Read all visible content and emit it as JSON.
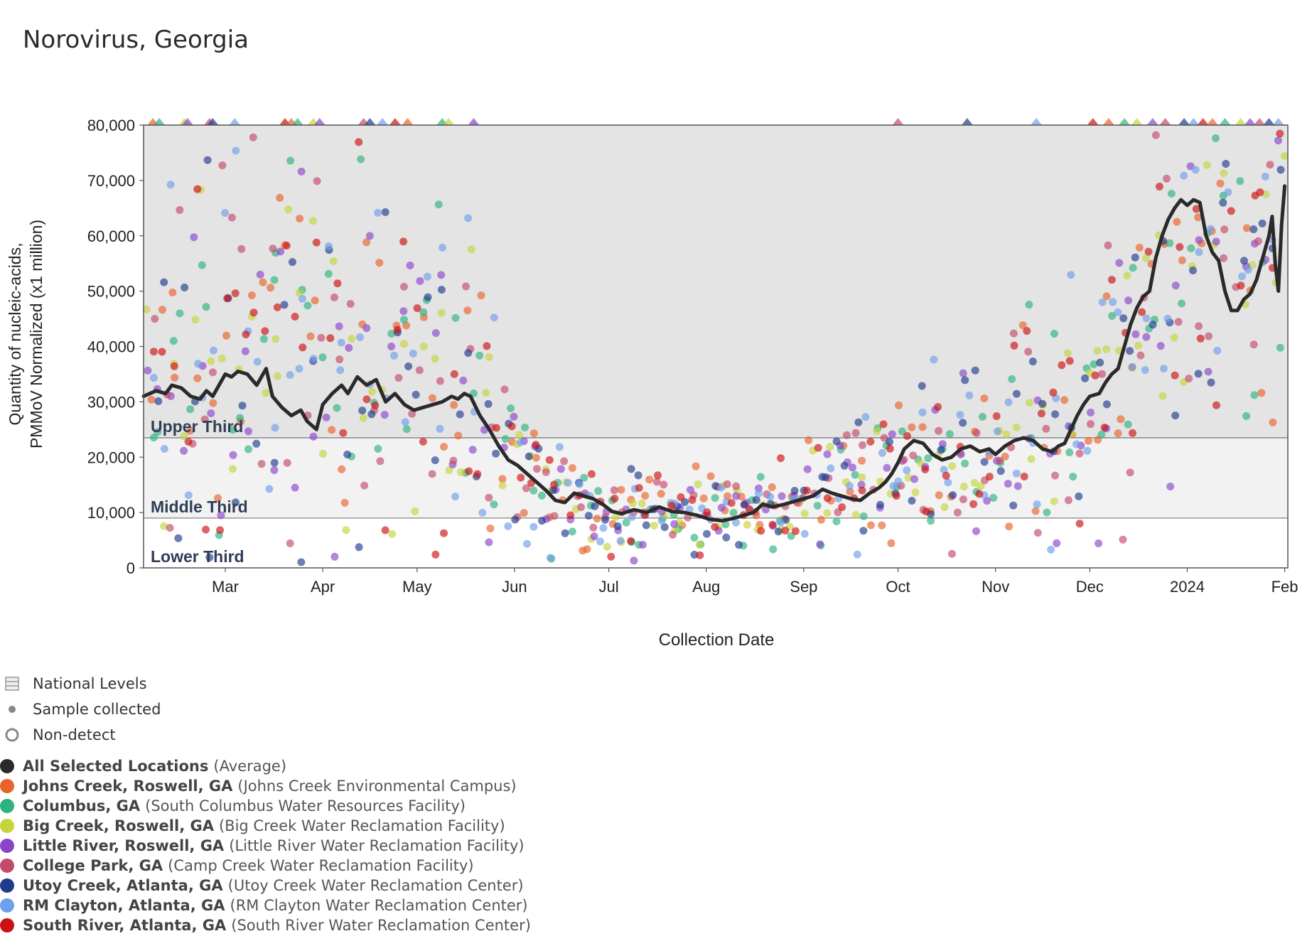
{
  "chart_data": {
    "type": "scatter",
    "title": "Norovirus, Georgia",
    "xlabel": "Collection Date",
    "ylabel_line1": "Quantity of nucleic-acids,",
    "ylabel_line2": "PMMoV Normalized (x1 million)",
    "ylim": [
      0,
      80000
    ],
    "y_ticks": [
      "0",
      "10,000",
      "20,000",
      "30,000",
      "40,000",
      "50,000",
      "60,000",
      "70,000",
      "80,000"
    ],
    "y_tick_values": [
      0,
      10000,
      20000,
      30000,
      40000,
      50000,
      60000,
      70000,
      80000
    ],
    "x_range_days": [
      0,
      364
    ],
    "x_ticks": [
      {
        "label": "Mar",
        "day": 26
      },
      {
        "label": "Apr",
        "day": 57
      },
      {
        "label": "May",
        "day": 87
      },
      {
        "label": "Jun",
        "day": 118
      },
      {
        "label": "Jul",
        "day": 148
      },
      {
        "label": "Aug",
        "day": 179
      },
      {
        "label": "Sep",
        "day": 210
      },
      {
        "label": "Oct",
        "day": 240
      },
      {
        "label": "Nov",
        "day": 271
      },
      {
        "label": "Dec",
        "day": 301
      },
      {
        "label": "2024",
        "day": 332
      },
      {
        "label": "Feb",
        "day": 363
      }
    ],
    "bands": [
      {
        "label": "Upper Third",
        "from": 23500,
        "to": 80000,
        "color": "#e4e4e4"
      },
      {
        "label": "Middle Third",
        "from": 9000,
        "to": 23500,
        "color": "#f2f2f2"
      },
      {
        "label": "Lower Third",
        "from": 0,
        "to": 9000,
        "color": "#ffffff"
      }
    ],
    "average_line": {
      "name": "All Selected Locations (Average)",
      "color": "#2a2a2a",
      "points": [
        [
          0,
          31000
        ],
        [
          4,
          32000
        ],
        [
          7,
          31500
        ],
        [
          9,
          33000
        ],
        [
          12,
          32500
        ],
        [
          15,
          31000
        ],
        [
          18,
          30500
        ],
        [
          20,
          32000
        ],
        [
          22,
          31000
        ],
        [
          26,
          35000
        ],
        [
          28,
          34500
        ],
        [
          30,
          35500
        ],
        [
          33,
          35000
        ],
        [
          36,
          33000
        ],
        [
          39,
          36000
        ],
        [
          41,
          31000
        ],
        [
          44,
          29000
        ],
        [
          47,
          27500
        ],
        [
          50,
          28500
        ],
        [
          52,
          26500
        ],
        [
          55,
          25000
        ],
        [
          57,
          29500
        ],
        [
          60,
          31500
        ],
        [
          63,
          33000
        ],
        [
          65,
          31500
        ],
        [
          68,
          34500
        ],
        [
          71,
          33000
        ],
        [
          74,
          34000
        ],
        [
          77,
          30000
        ],
        [
          80,
          31500
        ],
        [
          83,
          29500
        ],
        [
          86,
          28500
        ],
        [
          89,
          29000
        ],
        [
          92,
          29500
        ],
        [
          95,
          30000
        ],
        [
          98,
          31000
        ],
        [
          100,
          30500
        ],
        [
          102,
          31500
        ],
        [
          104,
          31000
        ],
        [
          107,
          27500
        ],
        [
          110,
          25000
        ],
        [
          113,
          22000
        ],
        [
          116,
          19500
        ],
        [
          119,
          18500
        ],
        [
          122,
          17000
        ],
        [
          125,
          15500
        ],
        [
          128,
          14000
        ],
        [
          131,
          12200
        ],
        [
          134,
          11800
        ],
        [
          137,
          13500
        ],
        [
          140,
          13000
        ],
        [
          143,
          12500
        ],
        [
          146,
          11500
        ],
        [
          149,
          10200
        ],
        [
          152,
          9800
        ],
        [
          156,
          10500
        ],
        [
          160,
          10000
        ],
        [
          164,
          11000
        ],
        [
          168,
          10200
        ],
        [
          172,
          10000
        ],
        [
          176,
          9500
        ],
        [
          180,
          8800
        ],
        [
          184,
          8500
        ],
        [
          188,
          9000
        ],
        [
          191,
          9500
        ],
        [
          194,
          10000
        ],
        [
          197,
          11500
        ],
        [
          200,
          11000
        ],
        [
          204,
          11500
        ],
        [
          207,
          12000
        ],
        [
          210,
          12500
        ],
        [
          213,
          13000
        ],
        [
          216,
          14200
        ],
        [
          219,
          13500
        ],
        [
          222,
          13000
        ],
        [
          225,
          12500
        ],
        [
          228,
          12200
        ],
        [
          231,
          13500
        ],
        [
          234,
          14500
        ],
        [
          236,
          15500
        ],
        [
          238,
          17000
        ],
        [
          240,
          19000
        ],
        [
          242,
          21500
        ],
        [
          245,
          23000
        ],
        [
          248,
          22500
        ],
        [
          251,
          20500
        ],
        [
          254,
          19500
        ],
        [
          257,
          20000
        ],
        [
          260,
          21500
        ],
        [
          263,
          22000
        ],
        [
          266,
          21000
        ],
        [
          269,
          21500
        ],
        [
          271,
          20500
        ],
        [
          274,
          22000
        ],
        [
          277,
          23000
        ],
        [
          280,
          23500
        ],
        [
          283,
          23000
        ],
        [
          286,
          21500
        ],
        [
          289,
          21000
        ],
        [
          291,
          22000
        ],
        [
          293,
          22500
        ],
        [
          295,
          25000
        ],
        [
          297,
          27500
        ],
        [
          299,
          29500
        ],
        [
          301,
          31000
        ],
        [
          304,
          31500
        ],
        [
          306,
          33500
        ],
        [
          308,
          35000
        ],
        [
          310,
          36000
        ],
        [
          312,
          40000
        ],
        [
          314,
          44000
        ],
        [
          316,
          47000
        ],
        [
          318,
          49000
        ],
        [
          320,
          50000
        ],
        [
          322,
          56000
        ],
        [
          324,
          60000
        ],
        [
          326,
          63000
        ],
        [
          328,
          65000
        ],
        [
          330,
          66500
        ],
        [
          332,
          65500
        ],
        [
          334,
          66500
        ],
        [
          336,
          66000
        ],
        [
          338,
          60000
        ],
        [
          340,
          57000
        ],
        [
          342,
          55500
        ],
        [
          344,
          50000
        ],
        [
          346,
          46500
        ],
        [
          348,
          46500
        ],
        [
          350,
          48500
        ],
        [
          352,
          49500
        ],
        [
          354,
          52000
        ],
        [
          356,
          56000
        ],
        [
          358,
          60000
        ],
        [
          359,
          63500
        ],
        [
          360,
          55000
        ],
        [
          361,
          50000
        ],
        [
          362,
          62000
        ],
        [
          363,
          69000
        ]
      ]
    },
    "series": [
      {
        "name": "Johns Creek, Roswell, GA",
        "color": "#e8622a"
      },
      {
        "name": "Columbus, GA",
        "color": "#2db27d"
      },
      {
        "name": "Big Creek, Roswell, GA",
        "color": "#c5d43a"
      },
      {
        "name": "Little River, Roswell, GA",
        "color": "#8a44c9"
      },
      {
        "name": "College Park, GA",
        "color": "#c44a6a"
      },
      {
        "name": "Utoy Creek, Atlanta, GA",
        "color": "#1f3b8c"
      },
      {
        "name": "RM Clayton, Atlanta, GA",
        "color": "#6f9eea"
      },
      {
        "name": "South River, Atlanta, GA",
        "color": "#cc1111"
      }
    ],
    "level_profile": [
      [
        0,
        37000,
        24000
      ],
      [
        30,
        40000,
        26000
      ],
      [
        60,
        38000,
        25000
      ],
      [
        90,
        35000,
        24000
      ],
      [
        105,
        33000,
        22000
      ],
      [
        118,
        18000,
        10000
      ],
      [
        150,
        10000,
        6000
      ],
      [
        180,
        9500,
        5000
      ],
      [
        210,
        12000,
        6000
      ],
      [
        240,
        18000,
        10000
      ],
      [
        270,
        22000,
        12000
      ],
      [
        300,
        30000,
        16000
      ],
      [
        330,
        52000,
        22000
      ],
      [
        364,
        60000,
        24000
      ]
    ],
    "top_markers_days": [
      3,
      5,
      13,
      14,
      21,
      22,
      29,
      45,
      47,
      49,
      54,
      56,
      70,
      72,
      76,
      80,
      84,
      95,
      97,
      105,
      240,
      262,
      284,
      302,
      307,
      312,
      316,
      321,
      325,
      331,
      334,
      337,
      340,
      344,
      349,
      352,
      355,
      358,
      361
    ]
  },
  "legend": {
    "national_levels": "National Levels",
    "sample_collected": "Sample collected",
    "non_detect": "Non-detect",
    "average": {
      "name": "All Selected Locations",
      "detail": "(Average)",
      "color": "#2a2a2a"
    },
    "locations": [
      {
        "name": "Johns Creek, Roswell, GA",
        "detail": "(Johns Creek Environmental Campus)",
        "color": "#e8622a"
      },
      {
        "name": "Columbus, GA",
        "detail": "(South Columbus Water Resources Facility)",
        "color": "#2db27d"
      },
      {
        "name": "Big Creek, Roswell, GA",
        "detail": "(Big Creek Water Reclamation Facility)",
        "color": "#c5d43a"
      },
      {
        "name": "Little River, Roswell, GA",
        "detail": "(Little River Water Reclamation Facility)",
        "color": "#8a44c9"
      },
      {
        "name": "College Park, GA",
        "detail": "(Camp Creek Water Reclamation Facility)",
        "color": "#c44a6a"
      },
      {
        "name": "Utoy Creek, Atlanta, GA",
        "detail": "(Utoy Creek Water Reclamation Center)",
        "color": "#1f3b8c"
      },
      {
        "name": "RM Clayton, Atlanta, GA",
        "detail": "(RM Clayton Water Reclamation Center)",
        "color": "#6f9eea"
      },
      {
        "name": "South River, Atlanta, GA",
        "detail": "(South River Water Reclamation Center)",
        "color": "#cc1111"
      }
    ]
  }
}
